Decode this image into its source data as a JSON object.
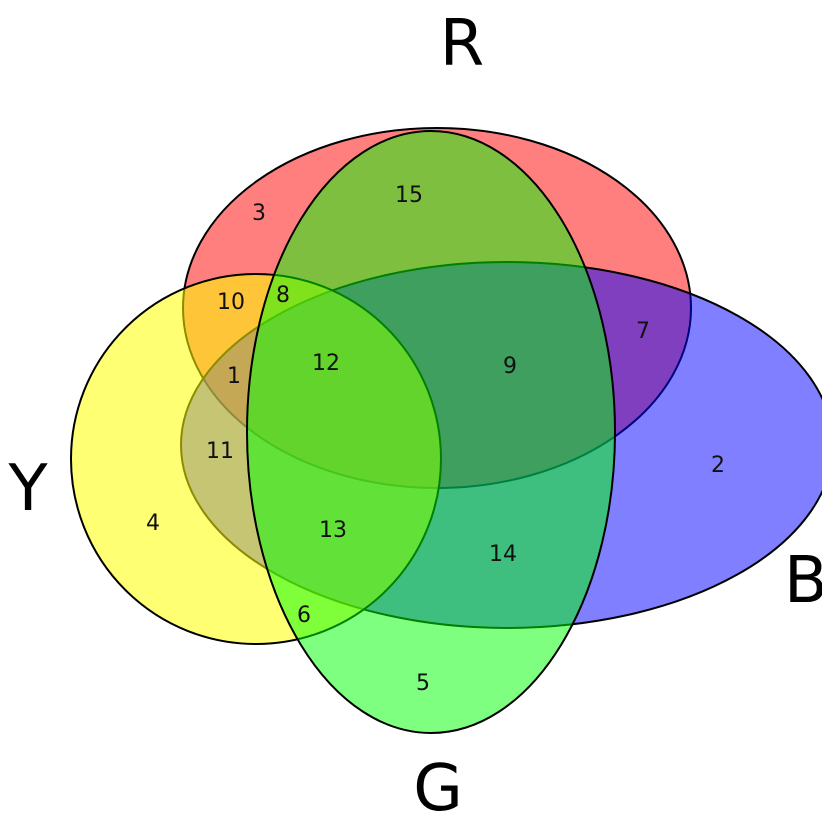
{
  "sets": [
    {
      "id": "R",
      "label": "R",
      "color": "#ff0000",
      "opacity": 0.5
    },
    {
      "id": "B",
      "label": "B",
      "color": "#0000ff",
      "opacity": 0.5
    },
    {
      "id": "Y",
      "label": "Y",
      "color": "#ffff00",
      "opacity": 0.55
    },
    {
      "id": "G",
      "label": "G",
      "color": "#00ff00",
      "opacity": 0.5
    }
  ],
  "regions": [
    {
      "label": "1",
      "sets": [
        "R",
        "B",
        "Y"
      ]
    },
    {
      "label": "2",
      "sets": [
        "B"
      ]
    },
    {
      "label": "3",
      "sets": [
        "R"
      ]
    },
    {
      "label": "4",
      "sets": [
        "Y"
      ]
    },
    {
      "label": "5",
      "sets": [
        "G"
      ]
    },
    {
      "label": "6",
      "sets": [
        "Y",
        "G"
      ]
    },
    {
      "label": "7",
      "sets": [
        "R",
        "B"
      ]
    },
    {
      "label": "8",
      "sets": [
        "R",
        "Y",
        "G"
      ]
    },
    {
      "label": "9",
      "sets": [
        "R",
        "B",
        "G"
      ]
    },
    {
      "label": "10",
      "sets": [
        "R",
        "Y"
      ]
    },
    {
      "label": "11",
      "sets": [
        "B",
        "Y"
      ]
    },
    {
      "label": "12",
      "sets": [
        "R",
        "B",
        "Y",
        "G"
      ]
    },
    {
      "label": "13",
      "sets": [
        "B",
        "Y",
        "G"
      ]
    },
    {
      "label": "14",
      "sets": [
        "B",
        "G"
      ]
    },
    {
      "label": "15",
      "sets": [
        "R",
        "G"
      ]
    }
  ]
}
